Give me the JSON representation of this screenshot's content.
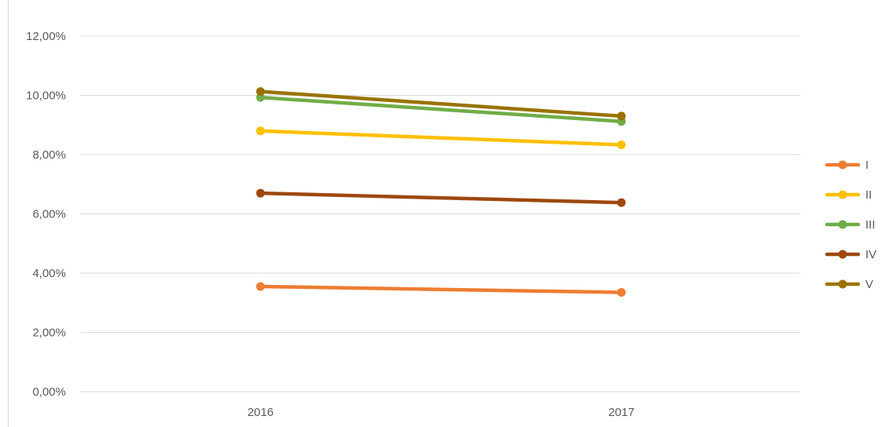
{
  "chart_data": {
    "type": "line",
    "title": "",
    "xlabel": "",
    "ylabel": "",
    "categories": [
      "2016",
      "2017"
    ],
    "ylim": [
      0,
      0.12
    ],
    "yticks": [
      0,
      0.02,
      0.04,
      0.06,
      0.08,
      0.1,
      0.12
    ],
    "ytick_labels": [
      "0,00%",
      "2,00%",
      "4,00%",
      "6,00%",
      "8,00%",
      "10,00%",
      "12,00%"
    ],
    "grid": true,
    "legend_position": "right",
    "series": [
      {
        "name": "I",
        "color": "#ED7D31",
        "values": [
          0.0355,
          0.0335
        ]
      },
      {
        "name": "II",
        "color": "#FFC000",
        "values": [
          0.088,
          0.0833
        ]
      },
      {
        "name": "III",
        "color": "#70AD47",
        "values": [
          0.0993,
          0.0912
        ]
      },
      {
        "name": "IV",
        "color": "#9E480E",
        "values": [
          0.067,
          0.0638
        ]
      },
      {
        "name": "V",
        "color": "#997300",
        "values": [
          0.1013,
          0.093
        ]
      }
    ]
  }
}
